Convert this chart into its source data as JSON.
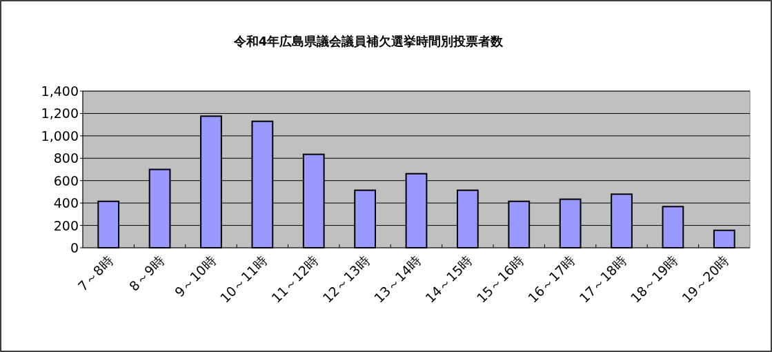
{
  "chart_data": {
    "type": "bar",
    "title": "令和4年広島県議会議員補欠選挙時間別投票者数",
    "categories": [
      "7～8時",
      "8～9時",
      "9～10時",
      "10～11時",
      "11～12時",
      "12～13時",
      "13～14時",
      "14～15時",
      "15～16時",
      "16～17時",
      "17～18時",
      "18～19時",
      "19～20時"
    ],
    "values": [
      415,
      700,
      1176,
      1130,
      835,
      514,
      662,
      514,
      415,
      434,
      479,
      368,
      156
    ],
    "color": "#9999ff",
    "ylim": [
      0,
      1400
    ],
    "yticks": [
      0,
      {
        "value": 200,
        "label": "200"
      },
      {
        "value": 400,
        "label": "400"
      },
      {
        "value": 600,
        "label": "600"
      },
      {
        "value": 800,
        "label": "800"
      },
      {
        "value": 1000,
        "label": "1,000"
      },
      {
        "value": 1200,
        "label": "1,200"
      },
      {
        "value": 1400,
        "label": "1,400"
      }
    ],
    "grid": "y"
  }
}
